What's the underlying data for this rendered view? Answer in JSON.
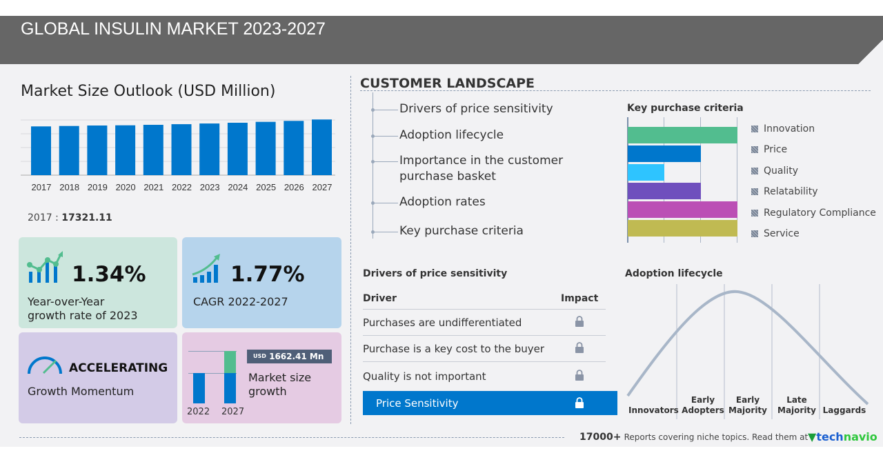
{
  "header": {
    "title": "GLOBAL INSULIN MARKET 2023-2027"
  },
  "market_size": {
    "title": "Market Size Outlook (USD Million)",
    "first_year_label": "2017 :",
    "first_year_value": "17321.11",
    "bar_color": "#0077cc"
  },
  "chart_data": {
    "type": "bar",
    "categories": [
      "2017",
      "2018",
      "2019",
      "2020",
      "2021",
      "2022",
      "2023",
      "2024",
      "2025",
      "2026",
      "2027"
    ],
    "values": [
      17321.11,
      17470,
      17640,
      17710,
      17880,
      18110,
      18353,
      18620,
      18940,
      19280,
      19772
    ],
    "title": "Market Size Outlook (USD Million)",
    "grid": true
  },
  "cards": {
    "yoy": {
      "value": "1.34%",
      "caption_line1": "Year-over-Year",
      "caption_line2": "growth rate of 2023",
      "color": "#cce6dd"
    },
    "cagr": {
      "value": "1.77%",
      "caption": "CAGR  2022-2027",
      "color": "#b6d4ec"
    },
    "momentum": {
      "value": "ACCELERATING",
      "caption": "Growth Momentum",
      "color": "#d3cbe7"
    },
    "growth": {
      "currency": "USD",
      "value": "1662.41 Mn",
      "caption_line1": "Market size",
      "caption_line2": "growth",
      "year_start": "2022",
      "year_end": "2027",
      "color": "#e5cbe3"
    }
  },
  "customer_landscape": {
    "title": "CUSTOMER  LANDSCAPE",
    "items": [
      {
        "label": "Drivers of price sensitivity"
      },
      {
        "label": "Adoption lifecycle"
      },
      {
        "label": "Importance in the customer",
        "label2": "purchase basket"
      },
      {
        "label": "Adoption rates"
      },
      {
        "label": "Key purchase criteria"
      }
    ]
  },
  "key_purchase_criteria": {
    "title": "Key purchase criteria",
    "scale_max": 3,
    "items": [
      {
        "label": "Innovation",
        "value": 3,
        "color": "#52bd8f"
      },
      {
        "label": "Price",
        "value": 2,
        "color": "#0077cc"
      },
      {
        "label": "Quality",
        "value": 1,
        "color": "#2ec4ff"
      },
      {
        "label": "Relatability",
        "value": 2,
        "color": "#6f4fbd"
      },
      {
        "label": "Regulatory Compliance",
        "value": 3,
        "color": "#bb4fb5"
      },
      {
        "label": "Service",
        "value": 3,
        "color": "#c0ba52"
      }
    ]
  },
  "drivers": {
    "title": "Drivers of price sensitivity",
    "col_driver": "Driver",
    "col_impact": "Impact",
    "rows": [
      {
        "label": "Purchases are undifferentiated",
        "icon": "lock-icon"
      },
      {
        "label": "Purchase is a key cost to the buyer",
        "icon": "lock-icon"
      },
      {
        "label": "Quality is not important",
        "icon": "lock-icon"
      }
    ],
    "highlight": {
      "label": "Price Sensitivity",
      "icon": "lock-icon",
      "color": "#0077cc"
    }
  },
  "adoption": {
    "title": "Adoption lifecycle",
    "stages": [
      {
        "l1": "",
        "l2": "Innovators"
      },
      {
        "l1": "Early",
        "l2": "Adopters"
      },
      {
        "l1": "Early",
        "l2": "Majority"
      },
      {
        "l1": "Late",
        "l2": "Majority"
      },
      {
        "l1": "",
        "l2": "Laggards"
      }
    ]
  },
  "footer": {
    "count": "17000+",
    "text": "Reports covering niche topics. Read them at",
    "brand_tech": "tech",
    "brand_navio": "navio"
  }
}
